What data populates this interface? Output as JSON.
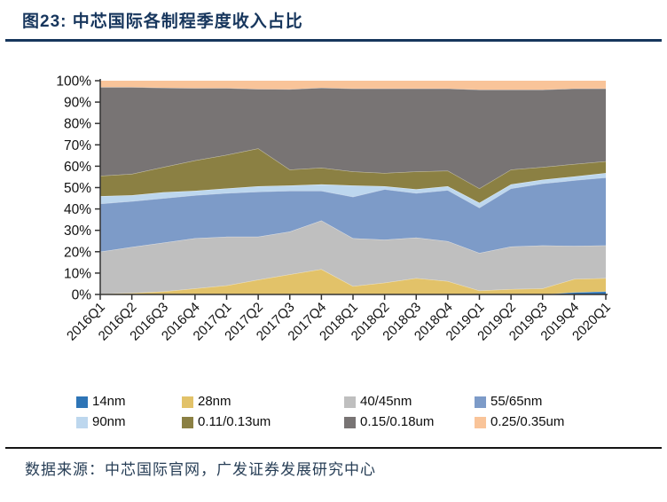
{
  "header": {
    "title": "图23:  中芯国际各制程季度收入占比"
  },
  "footer": {
    "source": "数据来源：中芯国际官网，广发证券发展研究中心"
  },
  "chart_data": {
    "type": "area",
    "stacked": true,
    "units": "percent of quarterly revenue",
    "title": "中芯国际各制程季度收入占比",
    "xlabel": "",
    "ylabel": "",
    "ylim": [
      0,
      100
    ],
    "grid": false,
    "legend_position": "bottom",
    "x_tick_rotation": 45,
    "y_ticks": [
      "0%",
      "10%",
      "20%",
      "30%",
      "40%",
      "50%",
      "60%",
      "70%",
      "80%",
      "90%",
      "100%"
    ],
    "categories": [
      "2016Q1",
      "2016Q2",
      "2016Q3",
      "2016Q4",
      "2017Q1",
      "2017Q2",
      "2017Q3",
      "2017Q4",
      "2018Q1",
      "2018Q2",
      "2018Q3",
      "2018Q4",
      "2019Q1",
      "2019Q2",
      "2019Q3",
      "2019Q4",
      "2020Q1"
    ],
    "series": [
      {
        "name": "14nm",
        "color": "#2E75B6",
        "values": [
          0,
          0,
          0,
          0,
          0,
          0,
          0,
          0,
          0,
          0,
          0,
          0,
          0,
          0,
          0,
          1.0,
          1.4
        ]
      },
      {
        "name": "28nm",
        "color": "#E2C269",
        "values": [
          0.3,
          0.7,
          1.4,
          2.8,
          4.2,
          6.9,
          9.4,
          11.8,
          3.9,
          5.5,
          7.6,
          6.2,
          1.8,
          2.5,
          2.8,
          6.2,
          6.2
        ]
      },
      {
        "name": "40/45nm",
        "color": "#BFBFBF",
        "values": [
          19.7,
          21.5,
          22.8,
          23.5,
          22.8,
          20.1,
          20.0,
          22.8,
          22.4,
          20.1,
          19.0,
          18.7,
          17.6,
          19.9,
          20.1,
          15.5,
          15.3
        ]
      },
      {
        "name": "55/65nm",
        "color": "#7D9BC8",
        "values": [
          22.5,
          21.4,
          20.8,
          20.1,
          20.4,
          21.1,
          19.1,
          13.9,
          19.4,
          23.6,
          20.8,
          23.9,
          21.2,
          27.2,
          29.0,
          30.7,
          31.8
        ]
      },
      {
        "name": "90nm",
        "color": "#BDD7EE",
        "values": [
          3.5,
          2.8,
          2.8,
          2.1,
          2.2,
          2.5,
          2.5,
          3.0,
          5.3,
          1.4,
          1.8,
          1.8,
          2.3,
          1.9,
          1.8,
          1.8,
          2.1
        ]
      },
      {
        "name": "0.11/0.13um",
        "color": "#8B8043",
        "values": [
          9.5,
          10.0,
          11.8,
          14.2,
          15.7,
          17.7,
          7.4,
          7.8,
          6.5,
          6.2,
          8.3,
          7.3,
          6.7,
          6.9,
          5.9,
          5.8,
          5.5
        ]
      },
      {
        "name": "0.15/0.18um",
        "color": "#787474",
        "values": [
          41.5,
          40.6,
          37.1,
          33.8,
          31.2,
          27.8,
          37.6,
          37.4,
          38.8,
          39.5,
          38.8,
          38.4,
          46.2,
          37.4,
          36.2,
          35.3,
          34.0
        ]
      },
      {
        "name": "0.25/0.35um",
        "color": "#F9C499",
        "values": [
          3.0,
          3.0,
          3.3,
          3.5,
          3.5,
          3.9,
          4.0,
          3.3,
          3.7,
          3.7,
          3.7,
          3.7,
          4.2,
          4.2,
          4.2,
          3.7,
          3.7
        ]
      }
    ]
  }
}
